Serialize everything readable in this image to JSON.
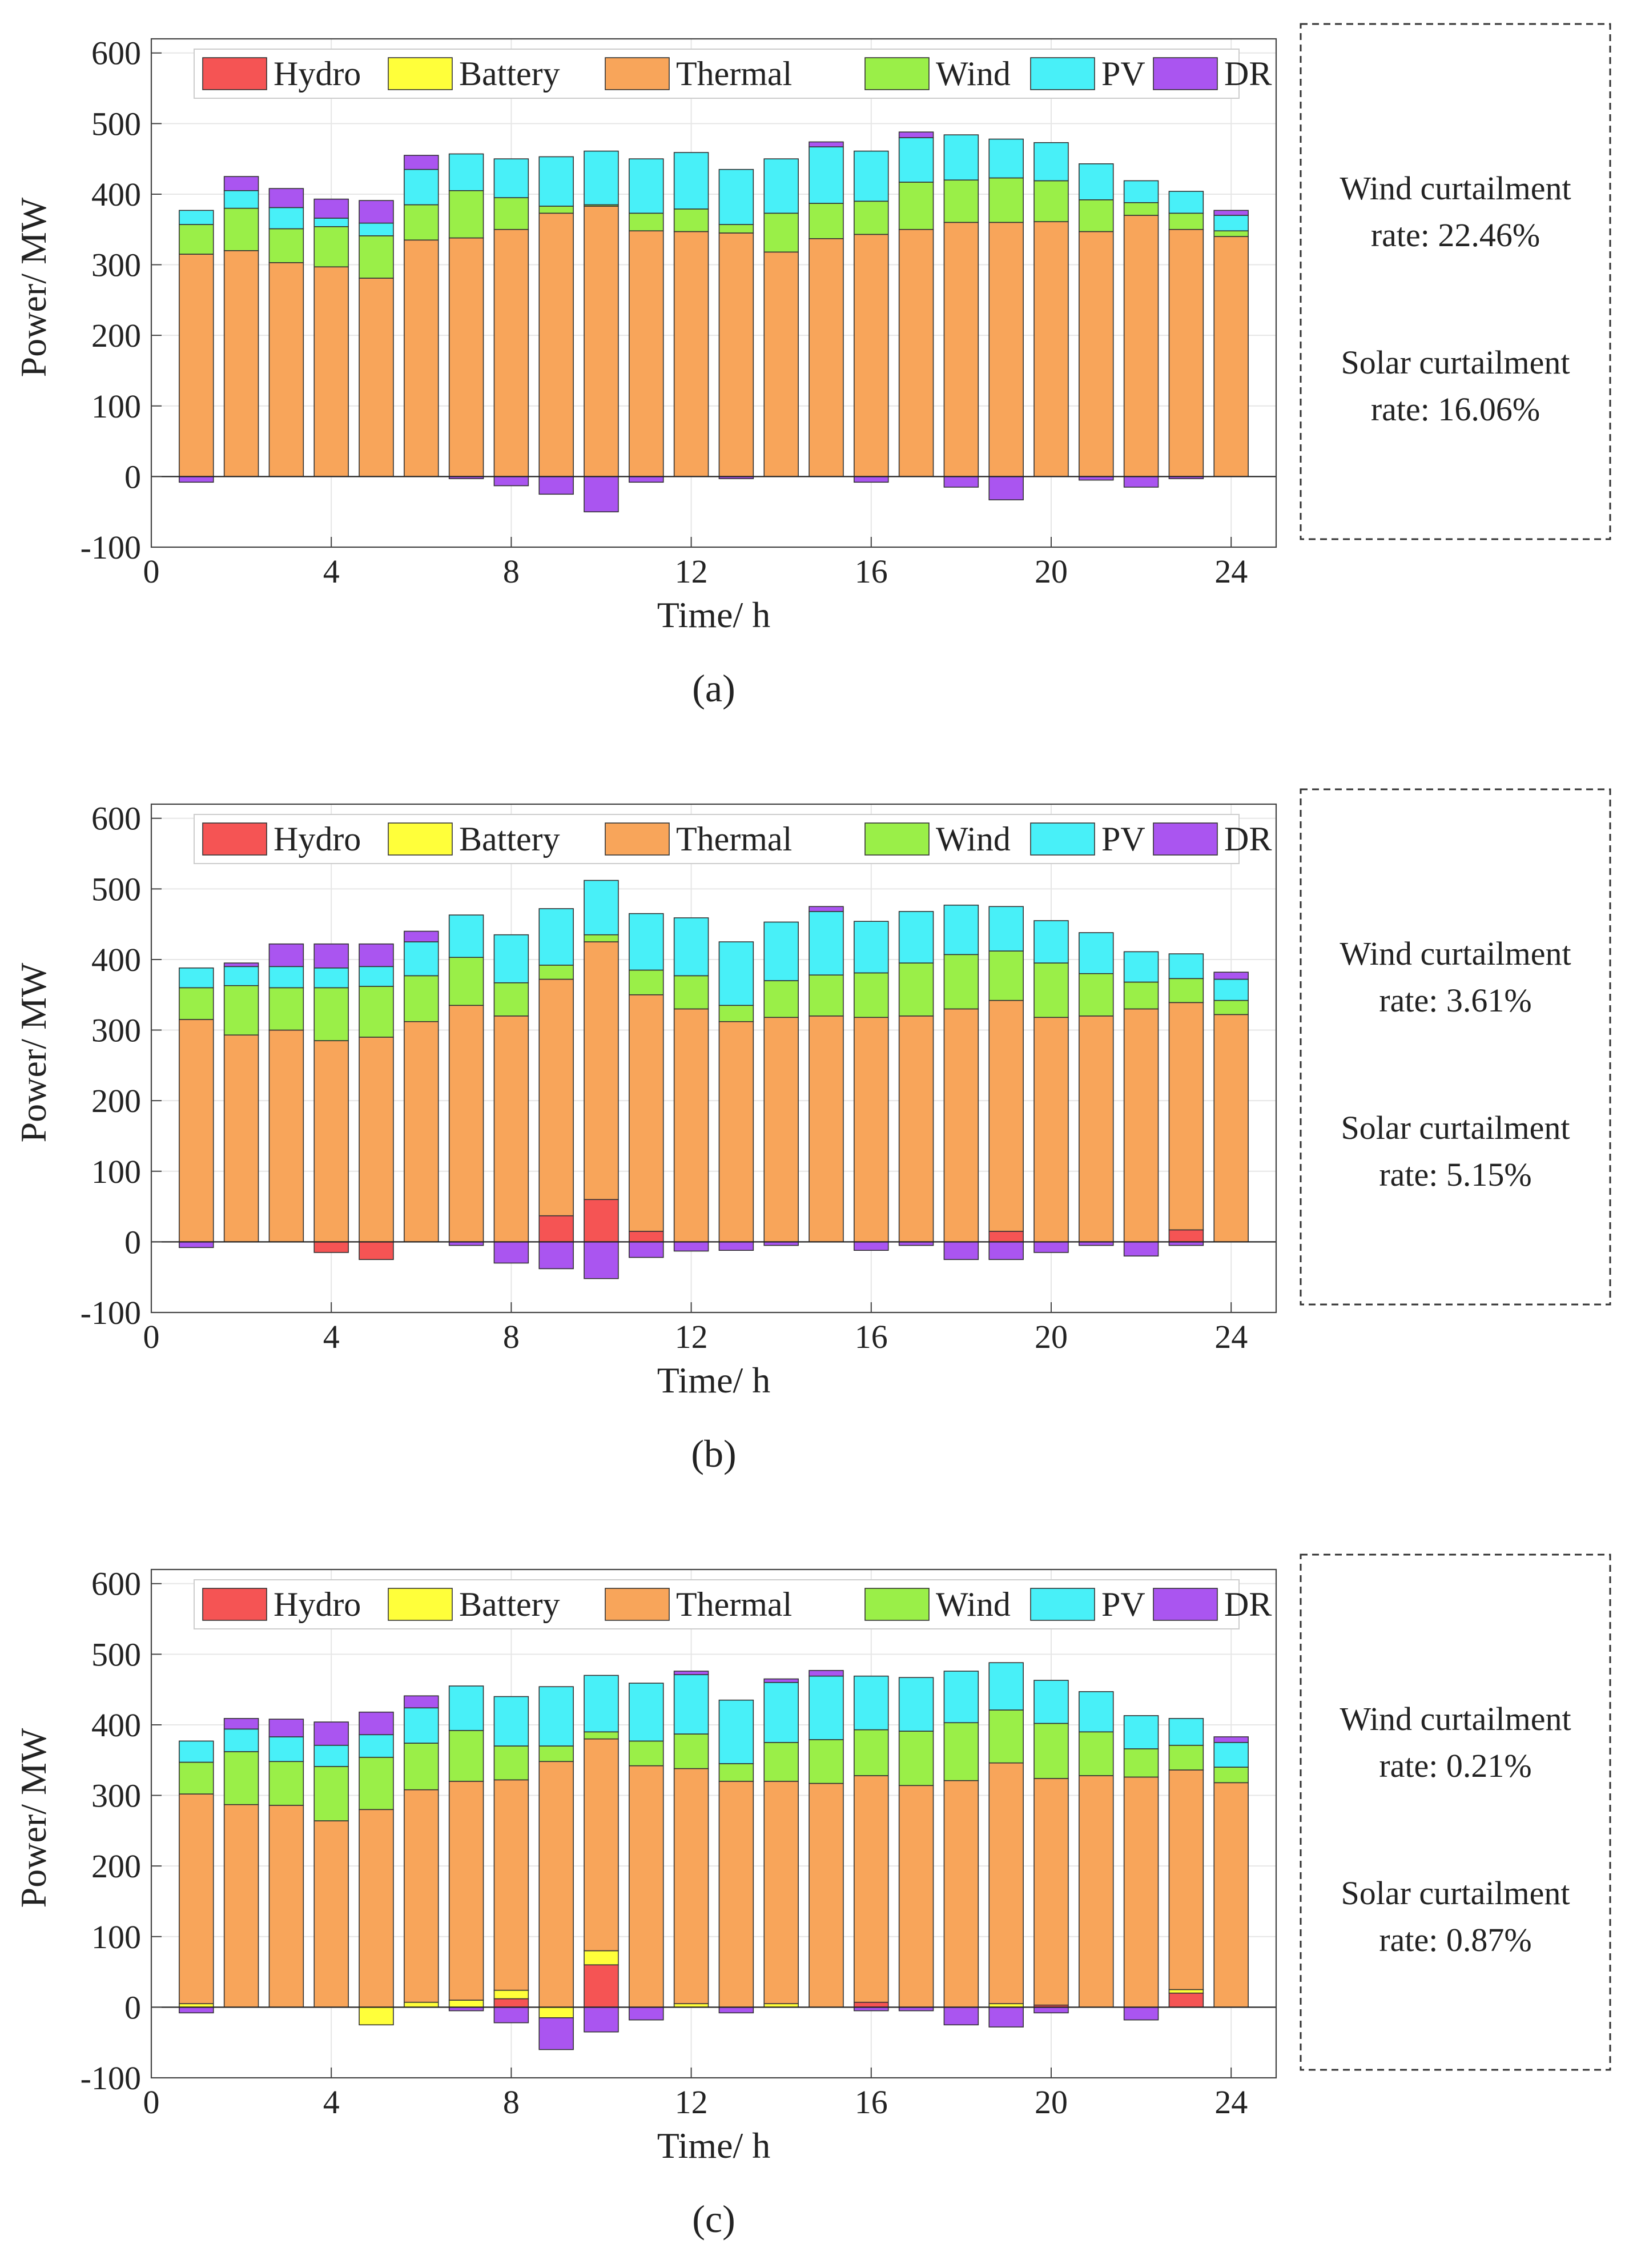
{
  "figure": {
    "legend_labels": [
      "Hydro",
      "Battery",
      "Thermal",
      "Wind",
      "PV",
      "DR"
    ],
    "colors": {
      "Hydro": "#f55454",
      "Battery": "#ffff3a",
      "Thermal": "#f8a55a",
      "Wind": "#9aef48",
      "PV": "#48f0f8",
      "DR": "#aa55f0",
      "edge": "#333333",
      "grid": "#e6e6e6"
    }
  },
  "chart_data": [
    {
      "type": "bar",
      "stacked": true,
      "panel_label": "(a)",
      "title": "",
      "xlabel": "Time/ h",
      "ylabel": "Power/ MW",
      "xlim": [
        0,
        25
      ],
      "ylim": [
        -100,
        620
      ],
      "xticks": [
        0,
        4,
        8,
        12,
        16,
        20,
        24
      ],
      "yticks": [
        -100,
        0,
        100,
        200,
        300,
        400,
        500,
        600
      ],
      "grid": true,
      "legend_position": "top",
      "categories": [
        1,
        2,
        3,
        4,
        5,
        6,
        7,
        8,
        9,
        10,
        11,
        12,
        13,
        14,
        15,
        16,
        17,
        18,
        19,
        20,
        21,
        22,
        23,
        24
      ],
      "series": [
        {
          "name": "Hydro",
          "values": [
            0,
            0,
            0,
            0,
            0,
            0,
            0,
            0,
            0,
            0,
            0,
            0,
            0,
            0,
            0,
            0,
            0,
            0,
            0,
            0,
            0,
            0,
            0,
            0
          ]
        },
        {
          "name": "Battery",
          "values": [
            0,
            0,
            0,
            0,
            0,
            0,
            0,
            0,
            0,
            0,
            0,
            0,
            0,
            0,
            0,
            0,
            0,
            0,
            0,
            0,
            0,
            0,
            0,
            0
          ]
        },
        {
          "name": "Thermal",
          "values": [
            315,
            320,
            303,
            297,
            281,
            335,
            338,
            350,
            373,
            383,
            348,
            347,
            345,
            318,
            337,
            343,
            350,
            360,
            360,
            361,
            347,
            370,
            350,
            340
          ]
        },
        {
          "name": "Wind",
          "values": [
            42,
            60,
            48,
            57,
            60,
            50,
            67,
            45,
            10,
            2,
            25,
            32,
            12,
            55,
            50,
            47,
            67,
            60,
            63,
            58,
            45,
            18,
            23,
            8
          ]
        },
        {
          "name": "PV",
          "values": [
            20,
            25,
            30,
            12,
            18,
            50,
            52,
            55,
            70,
            76,
            77,
            80,
            78,
            77,
            80,
            71,
            63,
            64,
            55,
            54,
            51,
            31,
            31,
            22
          ]
        },
        {
          "name": "DR",
          "values": [
            -8,
            20,
            27,
            27,
            32,
            20,
            -3,
            -13,
            -25,
            -50,
            -8,
            0,
            -3,
            0,
            7,
            -8,
            8,
            -15,
            -33,
            0,
            -5,
            -15,
            -3,
            7
          ]
        }
      ],
      "annotation": {
        "wind_rate": "Wind curtailment",
        "wind_value": "rate: 22.46%",
        "solar_rate": "Solar curtailment",
        "solar_value": "rate: 16.06%"
      }
    },
    {
      "type": "bar",
      "stacked": true,
      "panel_label": "(b)",
      "title": "",
      "xlabel": "Time/ h",
      "ylabel": "Power/ MW",
      "xlim": [
        0,
        25
      ],
      "ylim": [
        -100,
        620
      ],
      "xticks": [
        0,
        4,
        8,
        12,
        16,
        20,
        24
      ],
      "yticks": [
        -100,
        0,
        100,
        200,
        300,
        400,
        500,
        600
      ],
      "grid": true,
      "legend_position": "top",
      "categories": [
        1,
        2,
        3,
        4,
        5,
        6,
        7,
        8,
        9,
        10,
        11,
        12,
        13,
        14,
        15,
        16,
        17,
        18,
        19,
        20,
        21,
        22,
        23,
        24
      ],
      "series": [
        {
          "name": "Hydro",
          "values": [
            0,
            0,
            0,
            -15,
            -25,
            0,
            0,
            0,
            37,
            60,
            15,
            0,
            0,
            0,
            0,
            0,
            0,
            0,
            15,
            0,
            0,
            0,
            17,
            0
          ]
        },
        {
          "name": "Battery",
          "values": [
            0,
            0,
            0,
            0,
            0,
            0,
            0,
            0,
            0,
            0,
            0,
            0,
            0,
            0,
            0,
            0,
            0,
            0,
            0,
            0,
            0,
            0,
            0,
            0
          ]
        },
        {
          "name": "Thermal",
          "values": [
            315,
            293,
            300,
            285,
            290,
            312,
            335,
            320,
            335,
            365,
            335,
            330,
            312,
            318,
            320,
            318,
            320,
            330,
            327,
            318,
            320,
            330,
            322,
            322
          ]
        },
        {
          "name": "Wind",
          "values": [
            45,
            70,
            60,
            75,
            72,
            65,
            68,
            47,
            20,
            10,
            35,
            47,
            23,
            52,
            58,
            63,
            75,
            77,
            70,
            77,
            60,
            38,
            34,
            20
          ]
        },
        {
          "name": "PV",
          "values": [
            28,
            27,
            30,
            28,
            28,
            48,
            60,
            68,
            80,
            77,
            80,
            82,
            90,
            83,
            90,
            73,
            73,
            70,
            63,
            60,
            58,
            43,
            35,
            30
          ]
        },
        {
          "name": "DR",
          "values": [
            -8,
            5,
            32,
            34,
            32,
            15,
            -5,
            -30,
            -38,
            -52,
            -22,
            -13,
            -12,
            -5,
            7,
            -12,
            -5,
            -25,
            -25,
            -15,
            -5,
            -20,
            -5,
            10
          ]
        }
      ],
      "annotation": {
        "wind_rate": "Wind curtailment",
        "wind_value": "rate: 3.61%",
        "solar_rate": "Solar curtailment",
        "solar_value": "rate: 5.15%"
      }
    },
    {
      "type": "bar",
      "stacked": true,
      "panel_label": "(c)",
      "title": "",
      "xlabel": "Time/ h",
      "ylabel": "Power/ MW",
      "xlim": [
        0,
        25
      ],
      "ylim": [
        -100,
        620
      ],
      "xticks": [
        0,
        4,
        8,
        12,
        16,
        20,
        24
      ],
      "yticks": [
        -100,
        0,
        100,
        200,
        300,
        400,
        500,
        600
      ],
      "grid": true,
      "legend_position": "top",
      "categories": [
        1,
        2,
        3,
        4,
        5,
        6,
        7,
        8,
        9,
        10,
        11,
        12,
        13,
        14,
        15,
        16,
        17,
        18,
        19,
        20,
        21,
        22,
        23,
        24
      ],
      "series": [
        {
          "name": "Hydro",
          "values": [
            0,
            0,
            0,
            0,
            0,
            0,
            0,
            12,
            0,
            60,
            0,
            0,
            0,
            0,
            0,
            7,
            0,
            0,
            0,
            3,
            0,
            0,
            20,
            0
          ]
        },
        {
          "name": "Battery",
          "values": [
            5,
            0,
            0,
            0,
            -25,
            7,
            10,
            12,
            -15,
            20,
            0,
            5,
            0,
            5,
            0,
            0,
            0,
            0,
            5,
            0,
            0,
            0,
            5,
            0
          ]
        },
        {
          "name": "Thermal",
          "values": [
            297,
            287,
            286,
            264,
            280,
            301,
            310,
            298,
            348,
            300,
            342,
            333,
            320,
            315,
            317,
            321,
            314,
            321,
            341,
            321,
            328,
            326,
            311,
            318
          ]
        },
        {
          "name": "Wind",
          "values": [
            45,
            75,
            62,
            77,
            74,
            66,
            72,
            48,
            22,
            10,
            35,
            49,
            25,
            55,
            62,
            65,
            77,
            82,
            75,
            78,
            62,
            40,
            35,
            22
          ]
        },
        {
          "name": "PV",
          "values": [
            30,
            32,
            35,
            30,
            32,
            50,
            63,
            70,
            84,
            80,
            82,
            84,
            90,
            85,
            90,
            76,
            76,
            73,
            67,
            61,
            57,
            47,
            38,
            35
          ]
        },
        {
          "name": "DR",
          "values": [
            -8,
            15,
            25,
            33,
            32,
            17,
            -5,
            -22,
            -45,
            -35,
            -18,
            5,
            -8,
            5,
            8,
            -5,
            -5,
            -25,
            -28,
            -8,
            0,
            -18,
            0,
            8
          ]
        }
      ],
      "annotation": {
        "wind_rate": "Wind curtailment",
        "wind_value": "rate: 0.21%",
        "solar_rate": "Solar curtailment",
        "solar_value": "rate: 0.87%"
      }
    }
  ]
}
